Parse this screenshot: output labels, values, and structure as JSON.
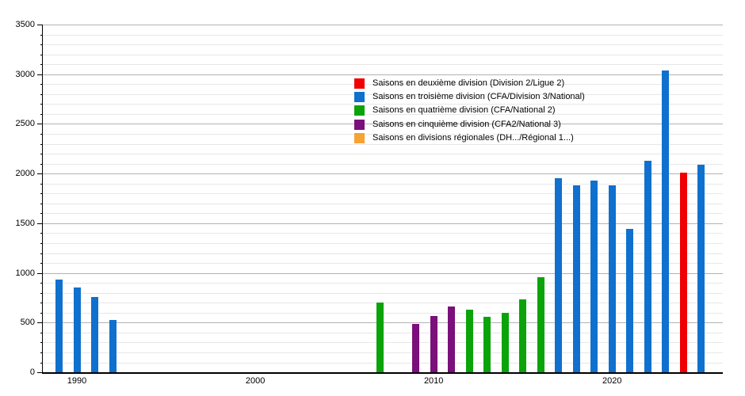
{
  "chart_data": {
    "type": "bar",
    "title": "",
    "xlabel": "",
    "ylabel": "",
    "grid": true,
    "legend_position": "upper-center-inside",
    "y_axis": {
      "min": 0,
      "max": 3500,
      "major_step": 500,
      "minor_step": 100,
      "tick_labels": [
        "0",
        "500",
        "1000",
        "1500",
        "2000",
        "2500",
        "3000",
        "3500"
      ]
    },
    "x_axis": {
      "tick_years": [
        1990,
        2000,
        2010,
        2020
      ],
      "first_year": 1989,
      "last_year": 2025
    },
    "series": [
      {
        "name": "Saisons en deuxième division (Division 2/Ligue 2)",
        "color": "#f00000",
        "points": [
          {
            "year": 2024,
            "value": 2010
          }
        ]
      },
      {
        "name": "Saisons en troisième division (CFA/Division 3/National)",
        "color": "#1070ce",
        "points": [
          {
            "year": 1989,
            "value": 930
          },
          {
            "year": 1990,
            "value": 850
          },
          {
            "year": 1991,
            "value": 760
          },
          {
            "year": 1992,
            "value": 530
          },
          {
            "year": 2017,
            "value": 1950
          },
          {
            "year": 2018,
            "value": 1880
          },
          {
            "year": 2019,
            "value": 1930
          },
          {
            "year": 2020,
            "value": 1880
          },
          {
            "year": 2021,
            "value": 1440
          },
          {
            "year": 2022,
            "value": 2130
          },
          {
            "year": 2023,
            "value": 3040
          },
          {
            "year": 2025,
            "value": 2090
          }
        ]
      },
      {
        "name": "Saisons en quatrième division (CFA/National 2)",
        "color": "#0aa40a",
        "points": [
          {
            "year": 2007,
            "value": 700
          },
          {
            "year": 2012,
            "value": 630
          },
          {
            "year": 2013,
            "value": 560
          },
          {
            "year": 2014,
            "value": 600
          },
          {
            "year": 2015,
            "value": 730
          },
          {
            "year": 2016,
            "value": 960
          }
        ]
      },
      {
        "name": "Saisons en cinquième division (CFA2/National 3)",
        "color": "#7b0f7b",
        "points": [
          {
            "year": 2009,
            "value": 490
          },
          {
            "year": 2010,
            "value": 570
          },
          {
            "year": 2011,
            "value": 660
          }
        ]
      },
      {
        "name": "Saisons en divisions régionales (DH.../Régional 1...)",
        "color": "#f7a233",
        "points": []
      }
    ]
  }
}
